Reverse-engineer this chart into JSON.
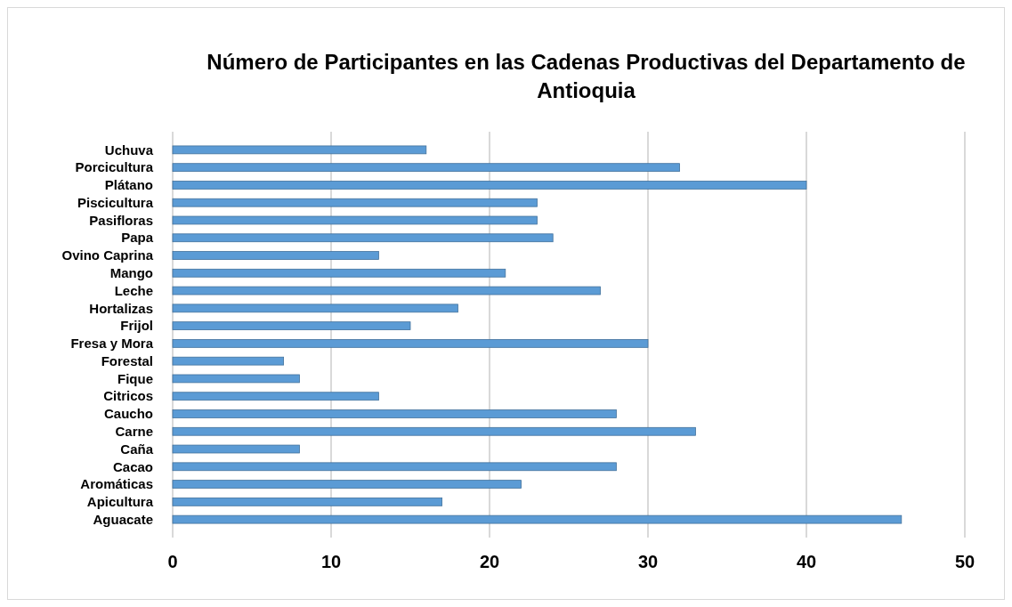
{
  "chart_data": {
    "type": "bar",
    "orientation": "horizontal",
    "title": "Número de Participantes en las Cadenas  Productivas del Departamento de Antioquia",
    "categories": [
      "Uchuva",
      "Porcicultura",
      "Plátano",
      "Piscicultura",
      "Pasifloras",
      "Papa",
      "Ovino Caprina",
      "Mango",
      "Leche",
      "Hortalizas",
      "Frijol",
      "Fresa y Mora",
      "Forestal",
      "Fique",
      "Citricos",
      "Caucho",
      "Carne",
      "Caña",
      "Cacao",
      "Aromáticas",
      "Apicultura",
      "Aguacate"
    ],
    "values": [
      16,
      32,
      40,
      23,
      23,
      24,
      13,
      21,
      27,
      18,
      15,
      30,
      7,
      8,
      13,
      28,
      33,
      8,
      28,
      22,
      17,
      46
    ],
    "color": "#5b9bd5",
    "xlim": [
      0,
      50
    ],
    "xticks": [
      0,
      10,
      20,
      30,
      40,
      50
    ],
    "grid": "x"
  }
}
